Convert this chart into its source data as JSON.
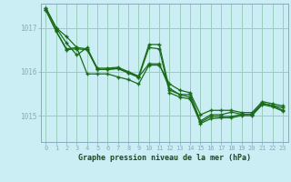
{
  "title": "Graphe pression niveau de la mer (hPa)",
  "bg_color": "#cbeef5",
  "grid_color": "#99ccbb",
  "line_color": "#1a6b1a",
  "spine_color": "#88aabb",
  "x_ticks": [
    0,
    1,
    2,
    3,
    4,
    5,
    6,
    7,
    8,
    9,
    10,
    11,
    12,
    13,
    14,
    15,
    16,
    17,
    18,
    19,
    20,
    21,
    22,
    23
  ],
  "ylim": [
    1014.4,
    1017.55
  ],
  "yticks": [
    1015,
    1016,
    1017
  ],
  "series": [
    [
      1017.45,
      1017.0,
      1016.8,
      1016.55,
      1015.95,
      1015.95,
      1015.95,
      1015.88,
      1015.82,
      1015.72,
      1016.15,
      1016.15,
      1015.72,
      1015.58,
      1015.52,
      1015.02,
      1015.12,
      1015.12,
      1015.12,
      1015.07,
      1015.07,
      1015.32,
      1015.27,
      1015.22
    ],
    [
      1017.45,
      1017.0,
      1016.65,
      1016.38,
      1016.55,
      1016.05,
      1016.05,
      1016.08,
      1015.98,
      1015.88,
      1016.18,
      1016.18,
      1015.62,
      1015.48,
      1015.48,
      1014.88,
      1015.02,
      1015.02,
      1015.08,
      1015.03,
      1015.03,
      1015.28,
      1015.23,
      1015.18
    ],
    [
      1017.4,
      1016.92,
      1016.52,
      1016.55,
      1016.52,
      1016.08,
      1016.08,
      1016.1,
      1016.0,
      1015.9,
      1016.62,
      1016.62,
      1015.58,
      1015.48,
      1015.42,
      1014.85,
      1014.98,
      1014.98,
      1014.98,
      1015.03,
      1015.03,
      1015.28,
      1015.23,
      1015.12
    ],
    [
      1017.4,
      1016.92,
      1016.5,
      1016.52,
      1016.5,
      1016.05,
      1016.05,
      1016.07,
      1015.97,
      1015.87,
      1016.55,
      1016.52,
      1015.52,
      1015.42,
      1015.38,
      1014.82,
      1014.93,
      1014.95,
      1014.95,
      1015.0,
      1015.0,
      1015.25,
      1015.2,
      1015.1
    ]
  ]
}
